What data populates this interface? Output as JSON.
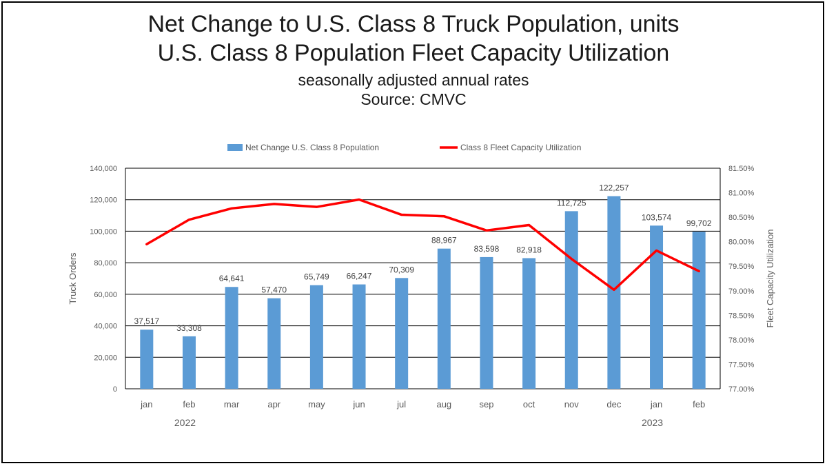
{
  "titles": {
    "line1": "Net Change to U.S. Class 8 Truck Population, units",
    "line2": "U.S. Class 8 Population Fleet Capacity Utilization",
    "line3": "seasonally adjusted annual rates",
    "line4": "Source: CMVC"
  },
  "colors": {
    "bar": "#5b9bd5",
    "line": "#ff0000",
    "grid": "#000000",
    "text": "#595959"
  },
  "chart_data": {
    "type": "bar",
    "title": "Net Change to U.S. Class 8 Truck Population, units / U.S. Class 8 Population Fleet Capacity Utilization",
    "subtitle": "seasonally adjusted annual rates",
    "source": "Source: CMVC",
    "categories": [
      "jan",
      "feb",
      "mar",
      "apr",
      "may",
      "jun",
      "jul",
      "aug",
      "sep",
      "oct",
      "nov",
      "dec",
      "jan",
      "feb"
    ],
    "year_labels": [
      {
        "label": "2022",
        "category_index": 1
      },
      {
        "label": "2023",
        "category_index": 12
      }
    ],
    "series": [
      {
        "name": "Net Change U.S. Class 8 Population",
        "type": "bar",
        "axis": "left",
        "values": [
          37517,
          33308,
          64641,
          57470,
          65749,
          66247,
          70309,
          88967,
          83598,
          82918,
          112725,
          122257,
          103574,
          99702
        ],
        "labels": [
          "37,517",
          "33,308",
          "64,641",
          "57,470",
          "65,749",
          "66,247",
          "70,309",
          "88,967",
          "83,598",
          "82,918",
          "112,725",
          "122,257",
          "103,574",
          "99,702"
        ]
      },
      {
        "name": "Class 8 Fleet Capacity Utilization",
        "type": "line",
        "axis": "right",
        "values": [
          79.95,
          80.45,
          80.68,
          80.77,
          80.71,
          80.86,
          80.55,
          80.52,
          80.23,
          80.34,
          79.65,
          79.02,
          79.82,
          79.4
        ]
      }
    ],
    "ylabel": "Truck Orders",
    "ylim": [
      0,
      140000
    ],
    "yticks": [
      "0",
      "20,000",
      "40,000",
      "60,000",
      "80,000",
      "100,000",
      "120,000",
      "140,000"
    ],
    "y2label": "Fleet Capacity  Utilization",
    "y2lim": [
      77.0,
      81.5
    ],
    "y2ticks": [
      "77.00%",
      "77.50%",
      "78.00%",
      "78.50%",
      "79.00%",
      "79.50%",
      "80.00%",
      "80.50%",
      "81.00%",
      "81.50%"
    ],
    "grid": "horizontal",
    "legend": "top-center"
  }
}
